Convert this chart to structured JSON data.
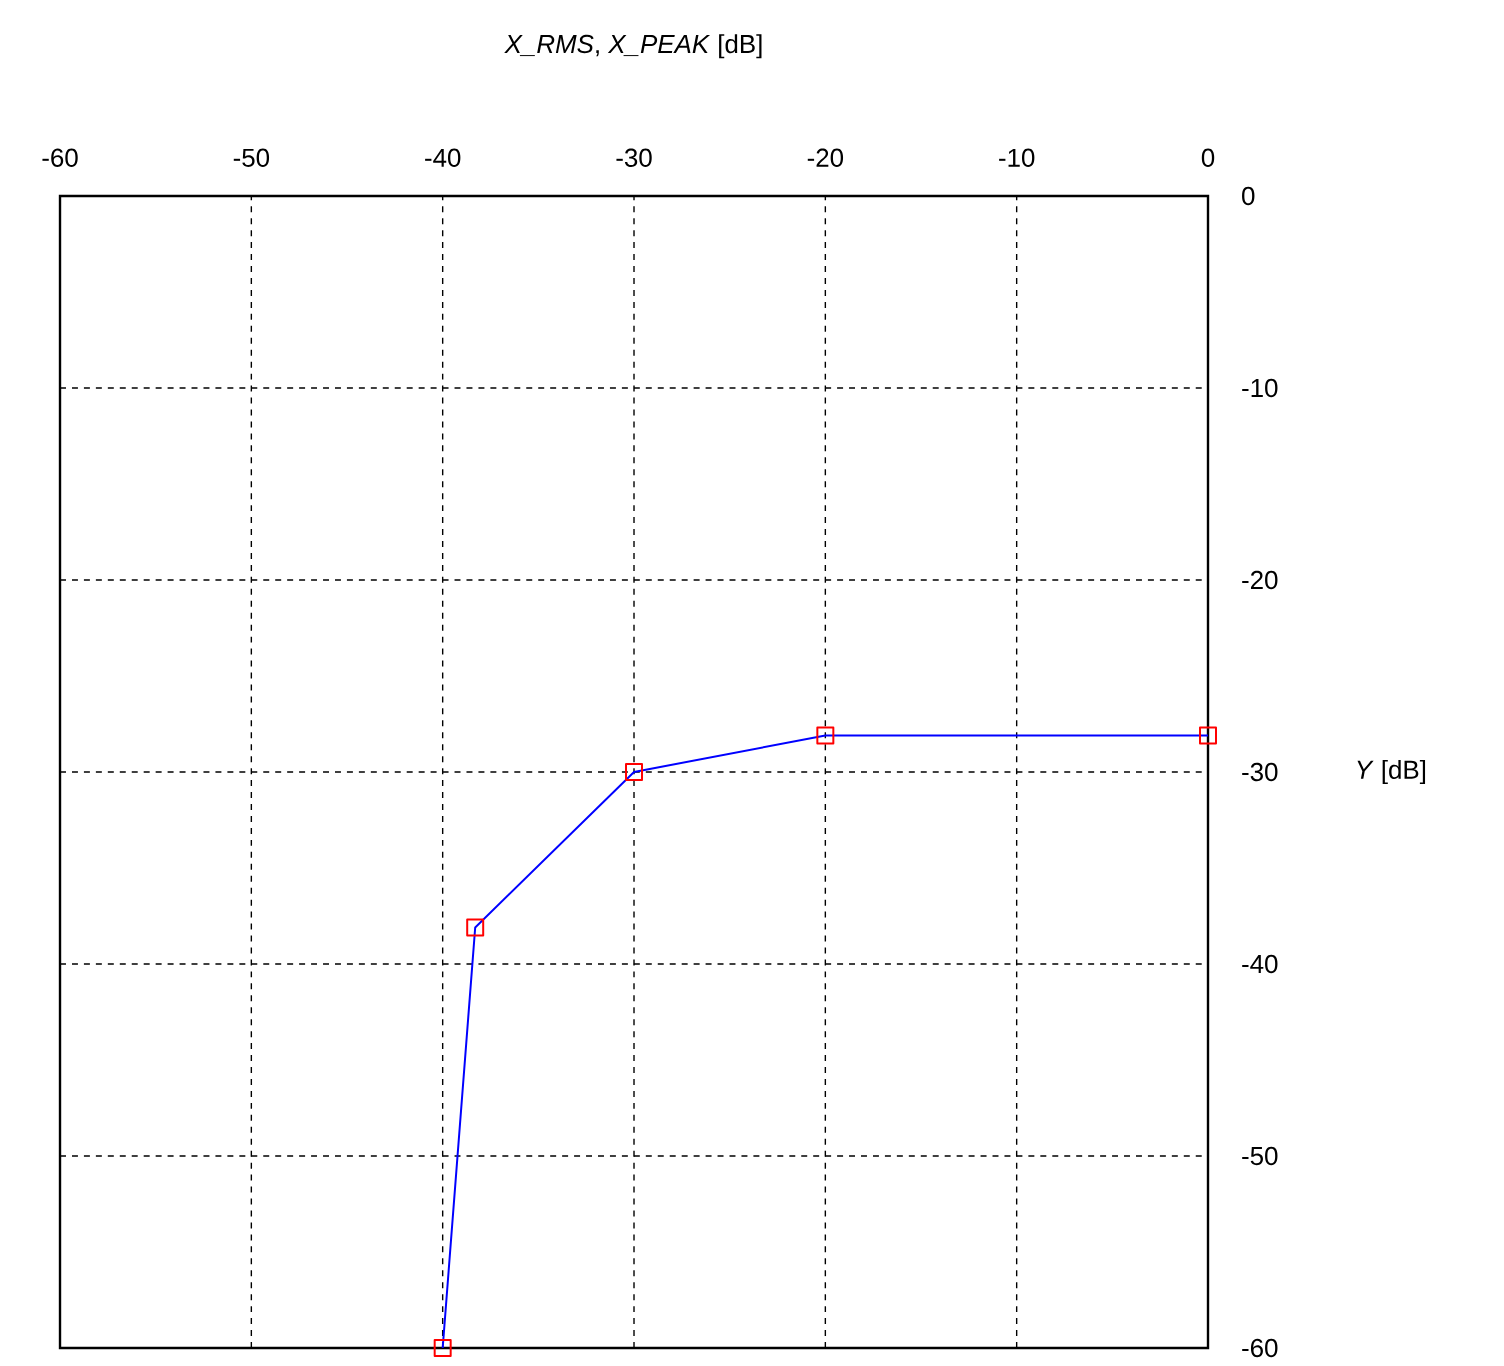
{
  "chart_data": {
    "type": "line",
    "xlabel": "*X_RMS*, *X_PEAK* [dB]",
    "ylabel": "*Y* [dB]",
    "series": [
      {
        "color": "#0000ff",
        "x": [
          -40,
          -38.3,
          -30,
          -20,
          0
        ],
        "values": [
          -60,
          -38.1,
          -30,
          -28.1,
          -28.1
        ]
      }
    ],
    "xlim": [
      -60,
      0
    ],
    "xticks": [
      -60,
      -50,
      -40,
      -30,
      -20,
      -10,
      0
    ],
    "ylim": [
      -60,
      0
    ],
    "yticks": [
      0,
      -10,
      -20,
      -30,
      -40,
      -50,
      -60
    ],
    "grid": true,
    "marker": "square",
    "line_style": "solid"
  }
}
